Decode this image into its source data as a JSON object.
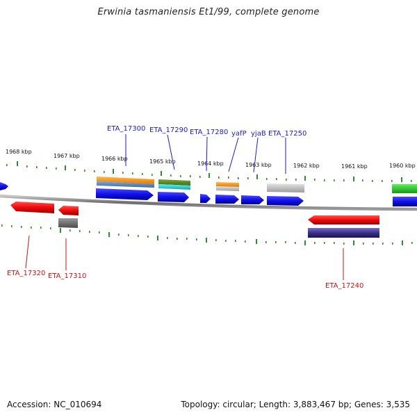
{
  "title": "Erwinia tasmaniensis Et1/99, complete genome",
  "accession": "Accession: NC_010694",
  "topology": "Topology: circular; Length: 3,883,467 bp; Genes: 3,535",
  "colors": {
    "top_label": "#1a1acc",
    "bottom_label": "#cc1111",
    "tick": "#2e8b2e",
    "backbone": "#7a7a7a",
    "forward_gene": "#1a1aee",
    "reverse_gene": "#ee1111"
  },
  "kbp_labels": [
    "1968 kbp",
    "1967 kbp",
    "1966 kbp",
    "1965 kbp",
    "1964 kbp",
    "1963 kbp",
    "1962 kbp",
    "1961 kbp",
    "1960 kbp"
  ],
  "top_labels": [
    "ETA_17300",
    "ETA_17290",
    "ETA_17280",
    "yafP",
    "yjaB",
    "ETA_17250"
  ],
  "bottom_labels": [
    "ETA_17320",
    "ETA_17310",
    "ETA_17240"
  ]
}
